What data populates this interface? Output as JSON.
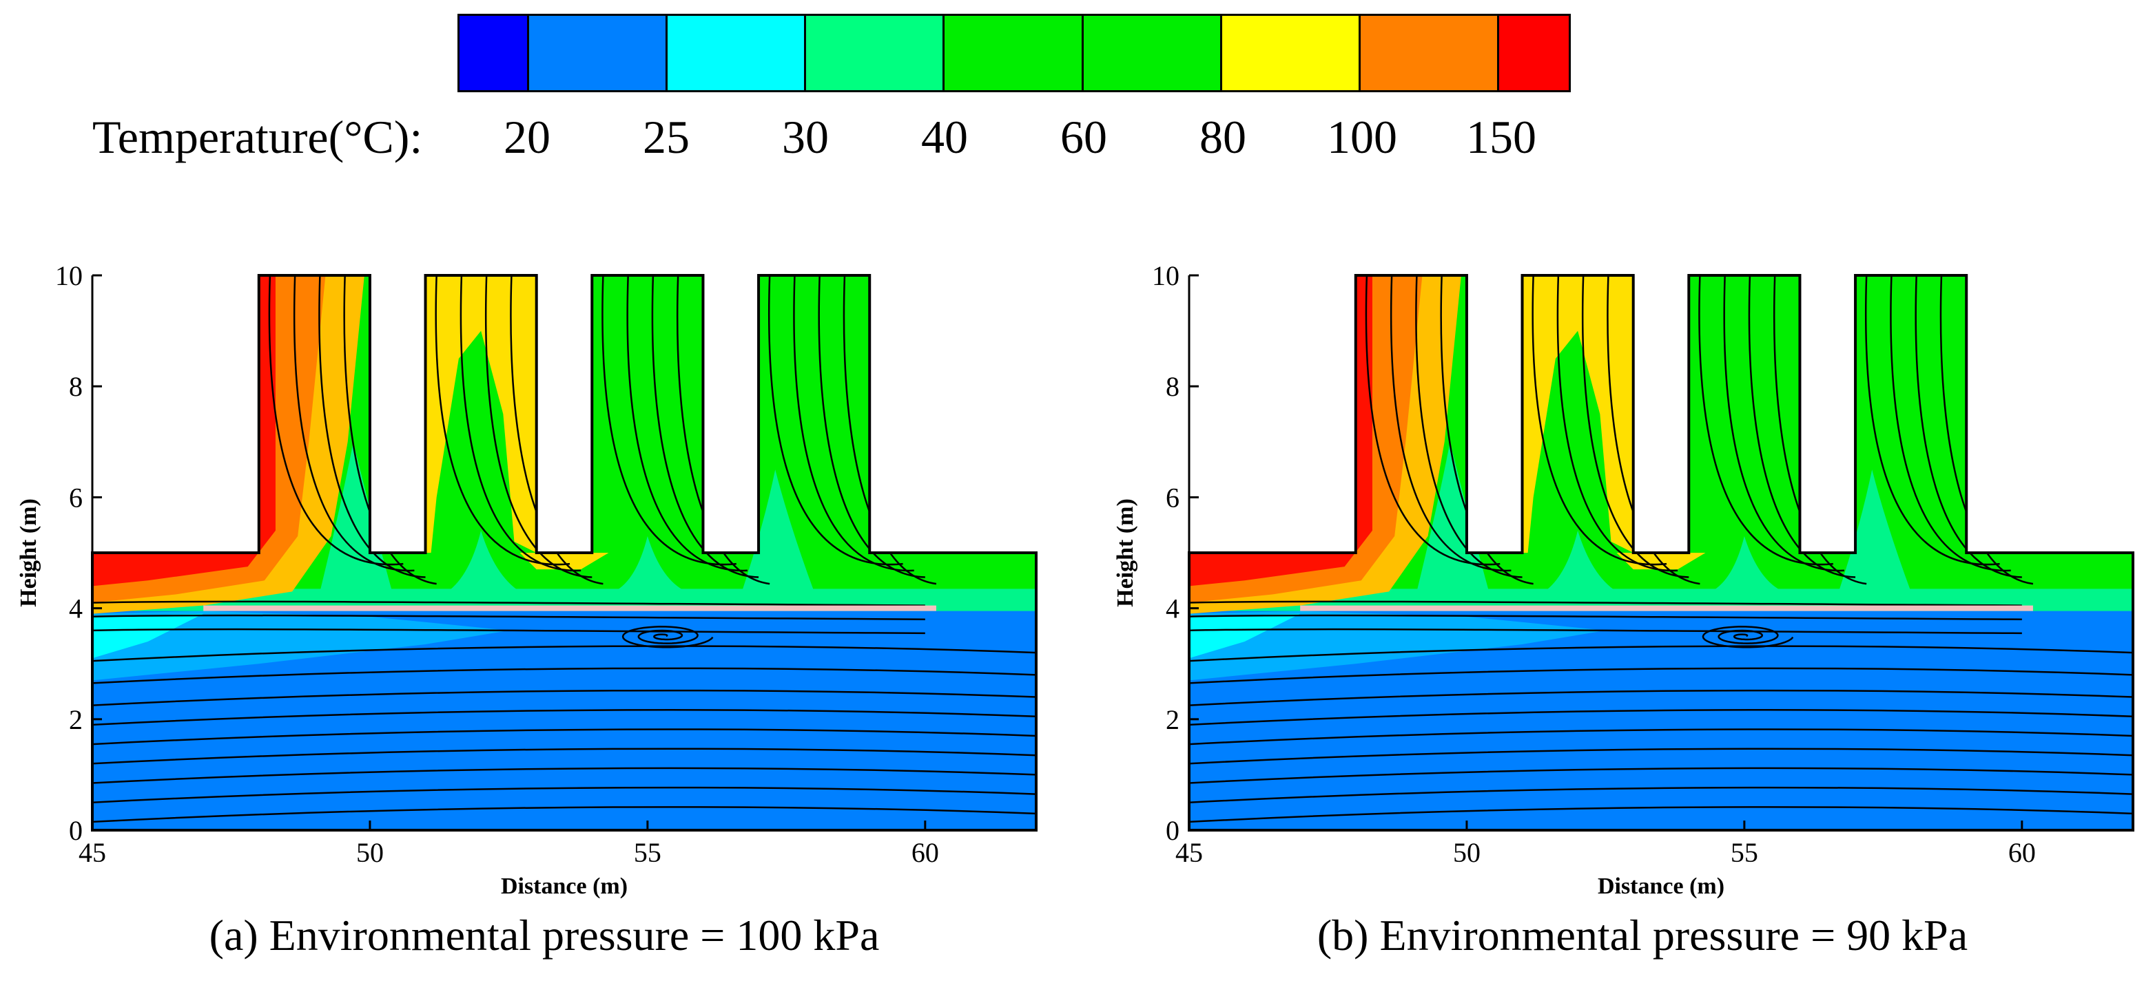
{
  "legend": {
    "title": "Temperature(°C):",
    "ticks": [
      "20",
      "25",
      "30",
      "40",
      "60",
      "80",
      "100",
      "150"
    ],
    "colors": [
      "#0000FF",
      "#0080FF",
      "#00FFFF",
      "#00FF80",
      "#00EE00",
      "#00EE00",
      "#FFFF00",
      "#FF8000",
      "#FF0000"
    ]
  },
  "chart_data": [
    {
      "type": "contour",
      "title": "(a) Environmental pressure = 100 kPa",
      "xlabel": "Distance (m)",
      "ylabel": "Height (m)",
      "xlim": [
        45,
        62
      ],
      "ylim": [
        0,
        10
      ],
      "xticks": [
        "45",
        "50",
        "55",
        "60"
      ],
      "yticks": [
        "0",
        "2",
        "4",
        "6",
        "8",
        "10"
      ],
      "openings": [
        [
          48,
          50
        ],
        [
          51,
          53
        ],
        [
          54,
          56
        ],
        [
          57,
          59
        ]
      ],
      "ceiling_height": 5,
      "vortex_center": [
        55.3,
        3.5
      ]
    },
    {
      "type": "contour",
      "title": "(b) Environmental pressure = 90 kPa",
      "xlabel": "Distance (m)",
      "ylabel": "Height (m)",
      "xlim": [
        45,
        62
      ],
      "ylim": [
        0,
        10
      ],
      "xticks": [
        "45",
        "50",
        "55",
        "60"
      ],
      "yticks": [
        "0",
        "2",
        "4",
        "6",
        "8",
        "10"
      ],
      "openings": [
        [
          48,
          50
        ],
        [
          51,
          53
        ],
        [
          54,
          56
        ],
        [
          57,
          59
        ]
      ],
      "ceiling_height": 5,
      "vortex_center": [
        55.0,
        3.5
      ]
    }
  ]
}
